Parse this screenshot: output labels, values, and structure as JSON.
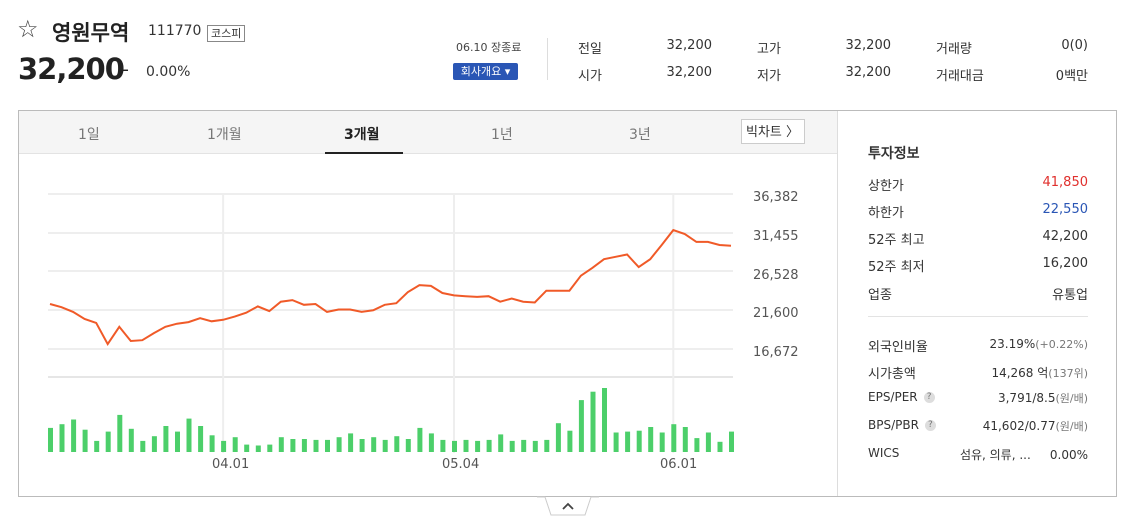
{
  "stock": {
    "name": "영원무역",
    "code": "111770",
    "market": "코스피",
    "price": "32,200",
    "change_sign": "–",
    "change_pct": "0.00%",
    "market_status": "06.10 장종료",
    "company_button": "회사개요 ▾"
  },
  "quotes": [
    {
      "label": "전일",
      "value": "32,200"
    },
    {
      "label": "고가",
      "value": "32,200"
    },
    {
      "label": "거래량",
      "value": "0(0)"
    },
    {
      "label": "시가",
      "value": "32,200"
    },
    {
      "label": "저가",
      "value": "32,200"
    },
    {
      "label": "거래대금",
      "value": "0백만"
    }
  ],
  "tabs": [
    {
      "label": "1일",
      "active": false
    },
    {
      "label": "1개월",
      "active": false
    },
    {
      "label": "3개월",
      "active": true
    },
    {
      "label": "1년",
      "active": false
    },
    {
      "label": "3년",
      "active": false
    }
  ],
  "big_chart_label": "빅차트 〉",
  "info": {
    "title": "투자정보",
    "rows": [
      {
        "label": "상한가",
        "value": "41,850",
        "color": "#e0302d"
      },
      {
        "label": "하한가",
        "value": "22,550",
        "color": "#2a56b5"
      },
      {
        "label": "52주 최고",
        "value": "42,200",
        "color": "#333333"
      },
      {
        "label": "52주 최저",
        "value": "16,200",
        "color": "#333333"
      },
      {
        "label": "업종",
        "value": "유통업",
        "color": "#333333"
      }
    ],
    "rows2": [
      {
        "label": "외국인비율",
        "value": "23.19%",
        "sub": "(+0.22%)"
      },
      {
        "label": "시가총액",
        "value": "14,268 억",
        "sub": "(137위)"
      },
      {
        "label": "EPS/PER",
        "value": "3,791/8.5",
        "sub": "(원/배)",
        "help": "?"
      },
      {
        "label": "BPS/PBR",
        "value": "41,602/0.77",
        "sub": "(원/배)",
        "help": "?"
      },
      {
        "label": "WICS",
        "value": "섬유, 의류, ...     0.00%",
        "sub": ""
      }
    ]
  },
  "chart_data": {
    "type": "line",
    "y_ticks": [
      "36,382",
      "31,455",
      "26,528",
      "21,600",
      "16,672"
    ],
    "y_tick_values": [
      36382,
      31455,
      26528,
      21600,
      16672
    ],
    "ylim": [
      16672,
      36382
    ],
    "x_ticks": [
      "04.01",
      "05.04",
      "06.01"
    ],
    "x_tick_index": [
      15,
      35,
      54
    ],
    "grid": true,
    "line_color": "#f05a28",
    "bar_color": "#4ccf6a",
    "prices": [
      22900,
      22500,
      21900,
      21000,
      20500,
      17800,
      20000,
      18200,
      18300,
      19200,
      20000,
      20400,
      20600,
      21100,
      20700,
      20900,
      21300,
      21800,
      22600,
      22000,
      23200,
      23400,
      22800,
      22900,
      21900,
      22200,
      22200,
      21900,
      22100,
      22800,
      23000,
      24400,
      25300,
      25200,
      24300,
      24000,
      23900,
      23800,
      23900,
      23200,
      23600,
      23200,
      23100,
      24600,
      24600,
      24600,
      26500,
      27500,
      28600,
      28900,
      29200,
      27600,
      28600,
      30400,
      32300,
      31800,
      30800,
      30800,
      30400,
      30300
    ],
    "volumes": [
      26,
      30,
      35,
      24,
      12,
      22,
      40,
      25,
      12,
      17,
      28,
      22,
      36,
      28,
      18,
      12,
      16,
      8,
      7,
      8,
      16,
      14,
      14,
      13,
      13,
      16,
      20,
      14,
      16,
      13,
      17,
      14,
      26,
      20,
      13,
      12,
      13,
      12,
      13,
      19,
      12,
      13,
      12,
      13,
      31,
      23,
      56,
      65,
      69,
      21,
      22,
      23,
      27,
      21,
      30,
      27,
      15,
      21,
      11,
      22
    ]
  }
}
